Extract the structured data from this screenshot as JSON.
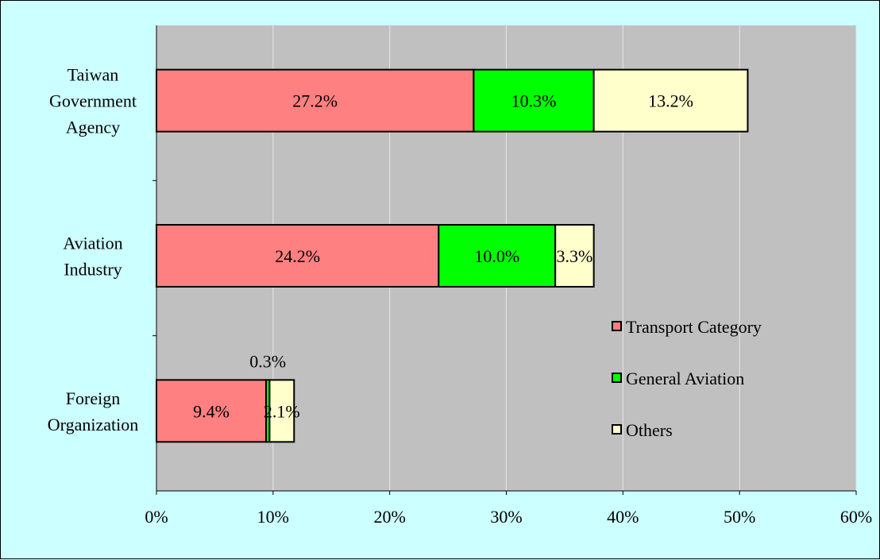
{
  "chart_data": {
    "type": "bar",
    "orientation": "horizontal",
    "stacked": true,
    "categories": [
      "Taiwan Government Agency",
      "Aviation Industry",
      "Foreign Organization"
    ],
    "category_label_lines": [
      [
        "Taiwan",
        "Government",
        "Agency"
      ],
      [
        "Aviation",
        "Industry"
      ],
      [
        "Foreign",
        "Organization"
      ]
    ],
    "series": [
      {
        "name": "Transport Category",
        "color": "#ff8080",
        "values": [
          27.2,
          24.2,
          9.4
        ],
        "labels": [
          "27.2%",
          "24.2%",
          "9.4%"
        ]
      },
      {
        "name": "General Aviation",
        "color": "#00ff00",
        "values": [
          10.3,
          10.0,
          0.3
        ],
        "labels": [
          "10.3%",
          "10.0%",
          "0.3%"
        ]
      },
      {
        "name": "Others",
        "color": "#ffffcc",
        "values": [
          13.2,
          3.3,
          2.1
        ],
        "labels": [
          "13.2%",
          "3.3%",
          "2.1%"
        ]
      }
    ],
    "xlim": [
      0,
      60
    ],
    "xticks": [
      0,
      10,
      20,
      30,
      40,
      50,
      60
    ],
    "xtick_labels": [
      "0%",
      "10%",
      "20%",
      "30%",
      "40%",
      "50%",
      "60%"
    ],
    "xlabel": "",
    "ylabel": "",
    "title": "",
    "grid": true,
    "legend_position": "right",
    "plot_background": "#c0c0c0",
    "page_background": "#ccffff"
  }
}
